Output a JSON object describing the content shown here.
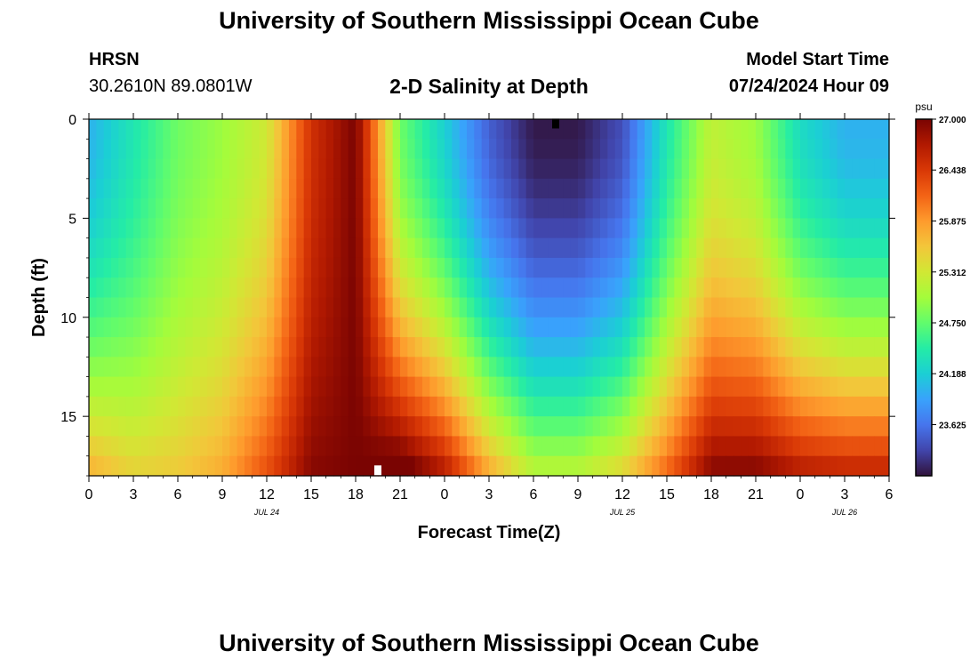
{
  "header": {
    "title": "University of Southern Mississippi Ocean Cube",
    "station": "HRSN",
    "coordinates": "30.2610N  89.0801W",
    "subtitle": "2-D Salinity at Depth",
    "model_start_label": "Model Start Time",
    "model_start_value": "07/24/2024 Hour 09"
  },
  "footer": {
    "title": "University of Southern Mississippi Ocean Cube"
  },
  "colors": {
    "colormap": [
      "#30123b",
      "#4145ab",
      "#4675ed",
      "#39a2fc",
      "#1bcfd4",
      "#24eca6",
      "#61fc6c",
      "#a4fc3b",
      "#d1e834",
      "#f3c63a",
      "#fe9b2d",
      "#f36315",
      "#d93806",
      "#b11901",
      "#7a0402"
    ]
  },
  "chart_data": {
    "type": "heatmap",
    "title": "2-D Salinity at Depth",
    "xlabel": "Forecast Time(Z)",
    "ylabel": "Depth (ft)",
    "x_tick_labels": [
      "0",
      "3",
      "6",
      "9",
      "12",
      "15",
      "18",
      "21",
      "0",
      "3",
      "6",
      "9",
      "12",
      "15",
      "18",
      "21",
      "0",
      "3",
      "6"
    ],
    "x_range_hours": [
      0,
      54
    ],
    "date_labels": [
      {
        "label": "JUL 24",
        "hour": 12
      },
      {
        "label": "JUL 25",
        "hour": 36
      },
      {
        "label": "JUL 26",
        "hour": 51
      }
    ],
    "y_ticks": [
      0,
      5,
      10,
      15
    ],
    "y_range_ft": [
      0,
      18
    ],
    "colorbar": {
      "unit": "psu",
      "ticks": [
        "27.000",
        "26.438",
        "25.875",
        "25.312",
        "24.750",
        "24.188",
        "23.625"
      ],
      "vmin": 23.06,
      "vmax": 27.0
    },
    "salinity_profile_psu": {
      "description": "surface salinity (depth 0 ft) and near-bottom salinity (depth 17 ft) by forecast hour",
      "hours": [
        0,
        3,
        6,
        9,
        12,
        15,
        18,
        21,
        24,
        27,
        30,
        33,
        36,
        39,
        42,
        45,
        48,
        51,
        54
      ],
      "surface": [
        24.0,
        24.4,
        24.8,
        25.0,
        25.3,
        26.5,
        27.0,
        24.8,
        24.2,
        23.5,
        23.1,
        23.1,
        23.4,
        24.4,
        25.2,
        25.0,
        24.3,
        24.0,
        24.0
      ],
      "bottom": [
        25.6,
        25.4,
        25.5,
        25.7,
        26.2,
        26.9,
        27.0,
        27.0,
        26.5,
        25.6,
        25.0,
        25.0,
        25.3,
        26.0,
        26.8,
        26.8,
        26.5,
        26.4,
        26.4
      ]
    },
    "markers": [
      {
        "hour": 31.5,
        "depth_ft": 0.2,
        "color": "#000000"
      },
      {
        "hour": 19.5,
        "depth_ft": 17.7,
        "color": "#ffffff"
      }
    ]
  }
}
